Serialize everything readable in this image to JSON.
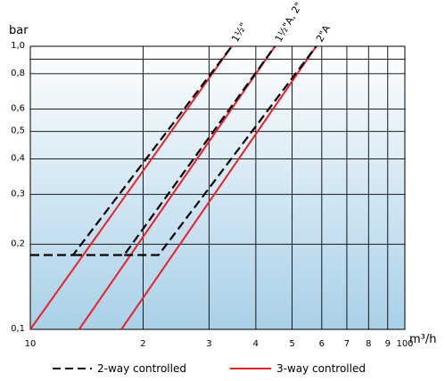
{
  "chart_data": {
    "type": "line",
    "ylabel": "bar",
    "xlabel": "m³/h",
    "x_scale": "log",
    "y_scale": "log",
    "xlim": [
      1,
      10
    ],
    "ylim": [
      0.1,
      1.0
    ],
    "grid": true,
    "x_ticks": [
      {
        "value": 1,
        "label": "10"
      },
      {
        "value": 2,
        "label": "2"
      },
      {
        "value": 3,
        "label": "3"
      },
      {
        "value": 4,
        "label": "4"
      },
      {
        "value": 5,
        "label": "5"
      },
      {
        "value": 6,
        "label": "6"
      },
      {
        "value": 7,
        "label": "7"
      },
      {
        "value": 8,
        "label": "8"
      },
      {
        "value": 9,
        "label": "9"
      },
      {
        "value": 10,
        "label": "100"
      }
    ],
    "y_ticks": [
      {
        "value": 0.1,
        "label": "0,1"
      },
      {
        "value": 0.2,
        "label": "0,2"
      },
      {
        "value": 0.3,
        "label": "0,3"
      },
      {
        "value": 0.4,
        "label": "0,4"
      },
      {
        "value": 0.5,
        "label": "0,5"
      },
      {
        "value": 0.6,
        "label": "0,6"
      },
      {
        "value": 0.8,
        "label": "0,8"
      },
      {
        "value": 0.9,
        "label": ""
      },
      {
        "value": 1.0,
        "label": "1,0"
      }
    ],
    "curve_labels": [
      "1½\"",
      "1½\"A, 2\"",
      "2\"A"
    ],
    "legend": {
      "placement": "bottom",
      "items": [
        {
          "label": "2-way controlled",
          "style": "dashed",
          "color": "#000000"
        },
        {
          "label": "3-way controlled",
          "style": "solid",
          "color": "#e8202a"
        }
      ]
    },
    "series": [
      {
        "group": "3-way controlled",
        "curve": "1½\"",
        "points": [
          [
            1.0,
            0.1
          ],
          [
            3.45,
            1.0
          ]
        ]
      },
      {
        "group": "3-way controlled",
        "curve": "1½\"A, 2\"",
        "points": [
          [
            1.35,
            0.1
          ],
          [
            4.5,
            1.0
          ]
        ]
      },
      {
        "group": "3-way controlled",
        "curve": "2\"A",
        "points": [
          [
            1.75,
            0.1
          ],
          [
            5.8,
            1.0
          ]
        ]
      },
      {
        "group": "2-way controlled",
        "curve": "1½\"",
        "points": [
          [
            1.0,
            0.183
          ],
          [
            1.3,
            0.183
          ],
          [
            3.45,
            1.0
          ]
        ]
      },
      {
        "group": "2-way controlled",
        "curve": "1½\"A, 2\"",
        "points": [
          [
            1.3,
            0.183
          ],
          [
            1.78,
            0.183
          ],
          [
            4.5,
            1.0
          ]
        ]
      },
      {
        "group": "2-way controlled",
        "curve": "2\"A",
        "points": [
          [
            1.78,
            0.183
          ],
          [
            2.2,
            0.183
          ],
          [
            5.8,
            1.0
          ]
        ]
      }
    ],
    "colors": {
      "red": "#e8202a",
      "black": "#000000",
      "bg_top": "#ffffff",
      "bg_bottom": "#a9d0e8"
    }
  }
}
